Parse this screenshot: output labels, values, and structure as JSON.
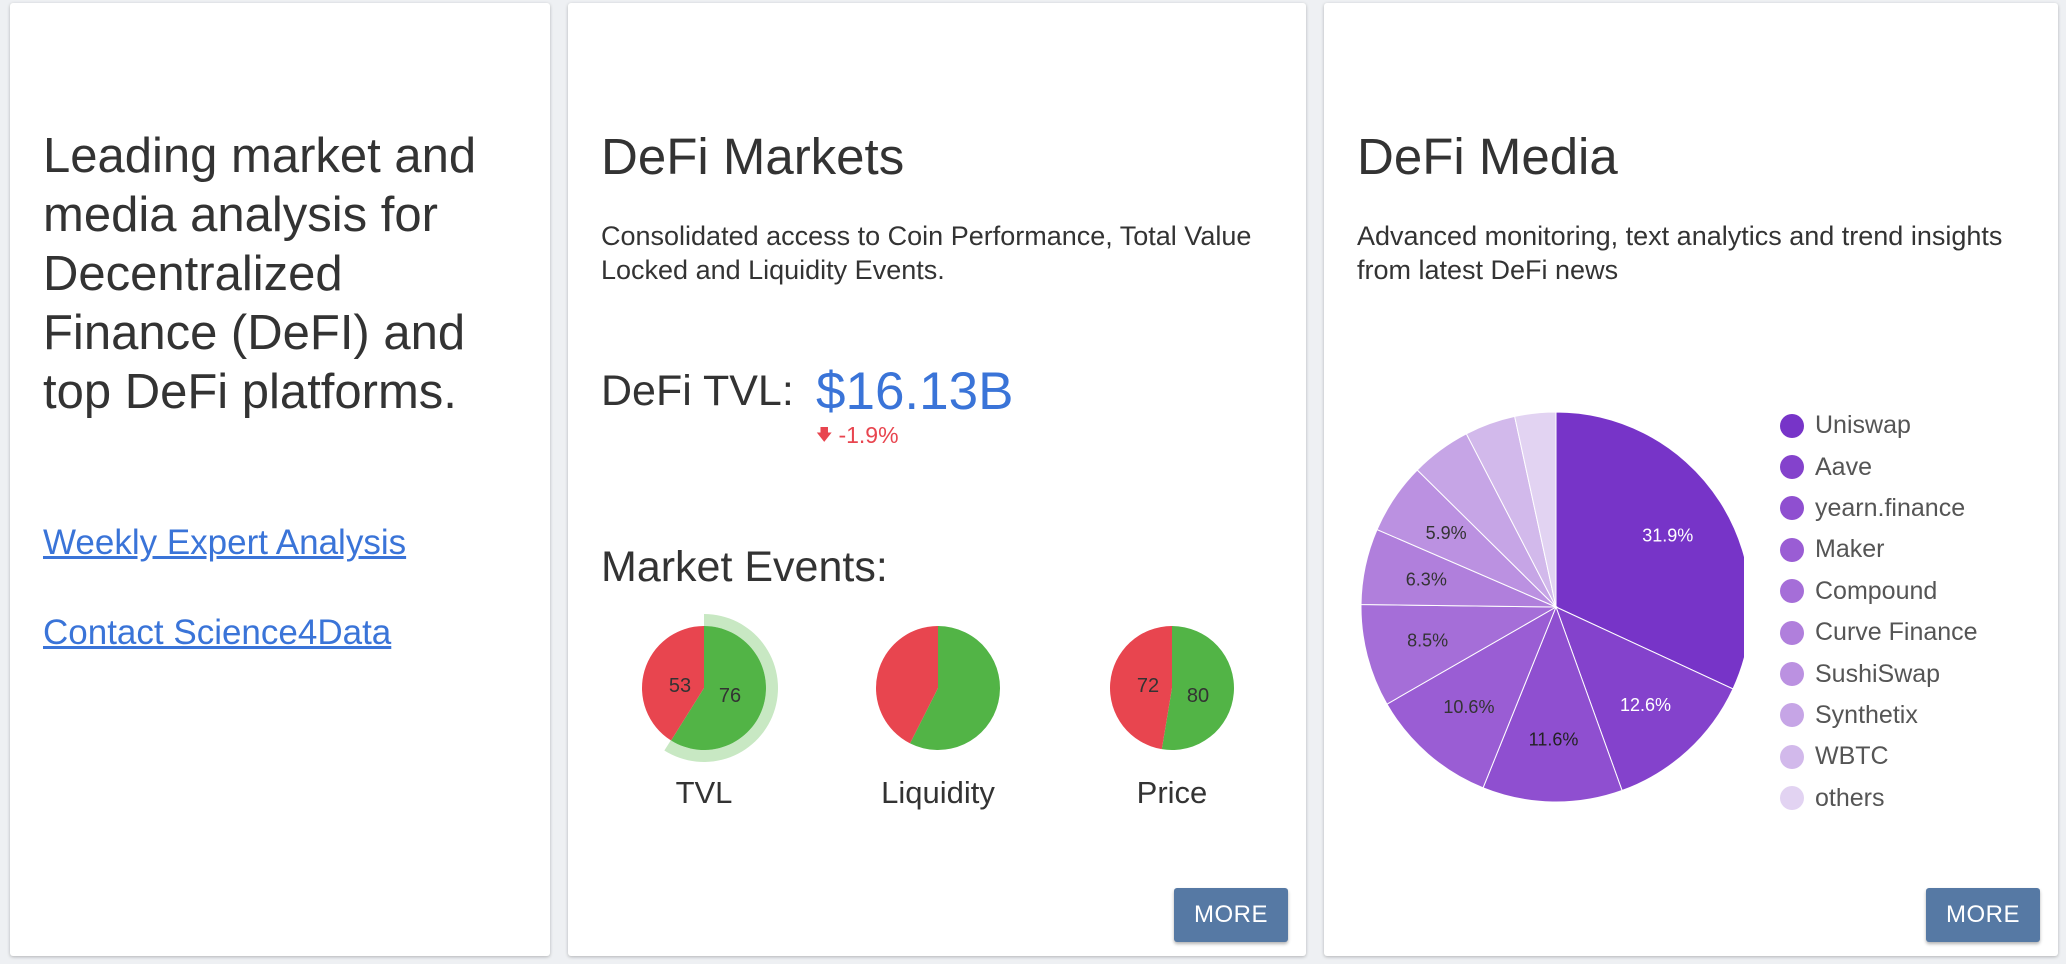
{
  "intro": {
    "headline": "Leading market and media analysis for Decentralized Finance (DeFI) and top DeFi platforms.",
    "links": [
      "Weekly Expert Analysis",
      "Contact Science4Data"
    ]
  },
  "markets": {
    "title": "DeFi Markets",
    "description": "Consolidated access to Coin Performance, Total Value Locked and Liquidity Events.",
    "tvl_label": "DeFi TVL:",
    "tvl_value": "$16.13B",
    "tvl_change": "-1.9%",
    "tvl_change_icon": "arrow-down-icon",
    "events_title": "Market Events:",
    "gauges": [
      {
        "label": "TVL",
        "negative": 53,
        "positive": 76,
        "show_values": true,
        "outer_ring_fraction": 0.59
      },
      {
        "label": "Liquidity",
        "negative": 40,
        "positive": 54,
        "show_values": false,
        "outer_ring_fraction": 0
      },
      {
        "label": "Price",
        "negative": 72,
        "positive": 80,
        "show_values": true,
        "outer_ring_fraction": 0
      }
    ],
    "colors": {
      "negative": "#e8454f",
      "positive": "#52b446",
      "ring": "#c8e8c3",
      "accent": "#3a74d8"
    },
    "more_label": "MORE"
  },
  "media": {
    "title": "DeFi Media",
    "description": "Advanced monitoring, text analytics and trend insights from latest DeFi news",
    "more_label": "MORE"
  },
  "chart_data": {
    "type": "pie",
    "title": "",
    "categories": [
      "Uniswap",
      "Aave",
      "yearn.finance",
      "Maker",
      "Compound",
      "Curve Finance",
      "SushiSwap",
      "Synthetix",
      "WBTC",
      "others"
    ],
    "values": [
      31.9,
      12.6,
      11.6,
      10.6,
      8.5,
      6.3,
      5.9,
      5.0,
      4.2,
      3.4
    ],
    "value_labels": [
      "31.9%",
      "12.6%",
      "11.6%",
      "10.6%",
      "8.5%",
      "6.3%",
      "5.9%",
      "",
      "",
      ""
    ],
    "colors": [
      "#7734c8",
      "#8442cc",
      "#8f4fd0",
      "#9a5dd4",
      "#a56ed8",
      "#b07fdc",
      "#bb91e1",
      "#c6a5e6",
      "#d2b9eb",
      "#e2d3f2"
    ],
    "legend_position": "right",
    "start_angle": "top"
  }
}
